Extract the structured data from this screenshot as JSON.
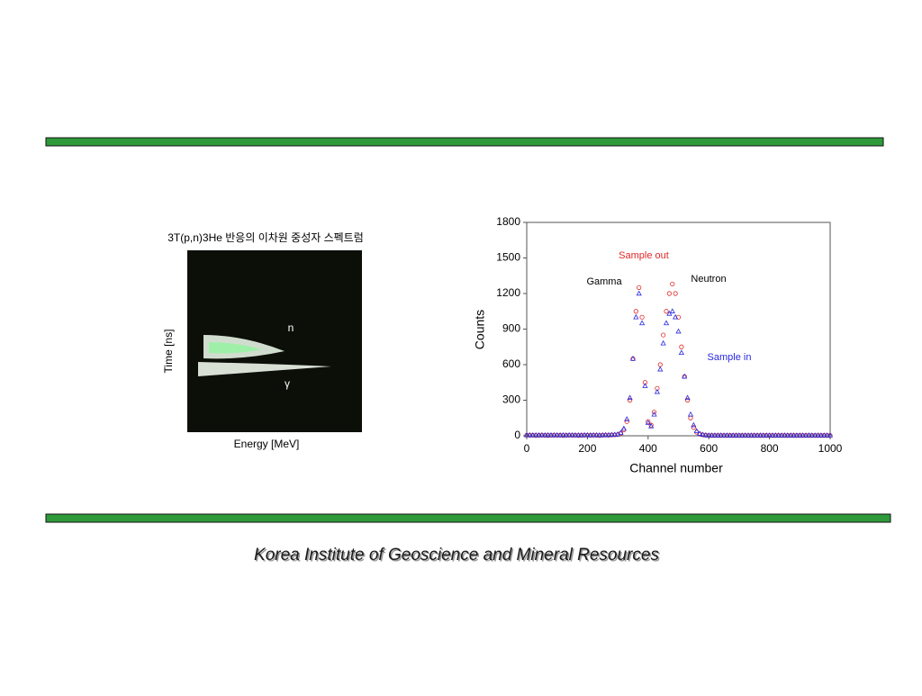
{
  "left_figure": {
    "title": "3T(p,n)3He 반응의 이차원 중성자 스펙트럼",
    "x_label": "Energy [MeV]",
    "y_label": "Time [ns]",
    "labels": [
      "n",
      "γ"
    ]
  },
  "chart_data": {
    "type": "scatter",
    "x_label": "Channel number",
    "y_label": "Counts",
    "xlim": [
      0,
      1000
    ],
    "xticks": [
      0,
      200,
      400,
      600,
      800,
      1000
    ],
    "ylim": [
      0,
      1800
    ],
    "yticks": [
      0,
      300,
      600,
      900,
      1200,
      1500,
      1800
    ],
    "x": [
      0,
      10,
      20,
      30,
      40,
      50,
      60,
      70,
      80,
      90,
      100,
      110,
      120,
      130,
      140,
      150,
      160,
      170,
      180,
      190,
      200,
      210,
      220,
      230,
      240,
      250,
      260,
      270,
      280,
      290,
      300,
      310,
      320,
      330,
      340,
      350,
      360,
      370,
      380,
      390,
      400,
      410,
      420,
      430,
      440,
      450,
      460,
      470,
      480,
      490,
      500,
      510,
      520,
      530,
      540,
      550,
      560,
      570,
      580,
      590,
      600,
      610,
      620,
      630,
      640,
      650,
      660,
      670,
      680,
      690,
      700,
      710,
      720,
      730,
      740,
      750,
      760,
      770,
      780,
      790,
      800,
      810,
      820,
      830,
      840,
      850,
      860,
      870,
      880,
      890,
      900,
      910,
      920,
      930,
      940,
      950,
      960,
      970,
      980,
      990,
      1000
    ],
    "series": [
      {
        "name": "Sample out",
        "color": "#e02828",
        "marker": "circle",
        "values": [
          5,
          4,
          5,
          3,
          4,
          5,
          4,
          3,
          5,
          4,
          4,
          5,
          3,
          4,
          5,
          4,
          5,
          3,
          4,
          5,
          5,
          4,
          5,
          4,
          3,
          5,
          6,
          5,
          7,
          8,
          10,
          20,
          50,
          120,
          300,
          650,
          1050,
          1250,
          1000,
          450,
          120,
          90,
          200,
          400,
          600,
          850,
          1050,
          1200,
          1280,
          1200,
          1000,
          750,
          500,
          300,
          150,
          70,
          30,
          15,
          8,
          5,
          3,
          3,
          3,
          3,
          3,
          3,
          3,
          3,
          3,
          3,
          3,
          3,
          3,
          3,
          3,
          3,
          3,
          3,
          3,
          3,
          3,
          3,
          3,
          3,
          3,
          3,
          3,
          3,
          3,
          3,
          3,
          3,
          3,
          3,
          3,
          3,
          3,
          3,
          3,
          3,
          3
        ]
      },
      {
        "name": "Sample in",
        "color": "#2828e0",
        "marker": "triangle",
        "values": [
          5,
          5,
          4,
          5,
          4,
          5,
          4,
          5,
          4,
          5,
          5,
          4,
          5,
          4,
          5,
          5,
          4,
          5,
          4,
          5,
          5,
          4,
          5,
          5,
          4,
          5,
          6,
          6,
          8,
          9,
          12,
          25,
          60,
          140,
          320,
          650,
          1000,
          1200,
          950,
          420,
          110,
          80,
          180,
          370,
          560,
          780,
          950,
          1030,
          1050,
          1000,
          880,
          700,
          500,
          320,
          180,
          90,
          40,
          18,
          9,
          5,
          3,
          3,
          3,
          3,
          3,
          3,
          3,
          3,
          3,
          3,
          3,
          3,
          3,
          3,
          3,
          3,
          3,
          3,
          3,
          3,
          3,
          3,
          3,
          3,
          3,
          3,
          3,
          3,
          3,
          3,
          3,
          3,
          3,
          3,
          3,
          3,
          3,
          3,
          3,
          3,
          3
        ]
      }
    ],
    "annotations": [
      {
        "text": "Sample out",
        "color": "#e02828"
      },
      {
        "text": "Gamma",
        "color": "#000000"
      },
      {
        "text": "Neutron",
        "color": "#000000"
      },
      {
        "text": "Sample in",
        "color": "#2828e0"
      }
    ]
  },
  "footer": "Korea Institute of Geoscience and Mineral Resources"
}
